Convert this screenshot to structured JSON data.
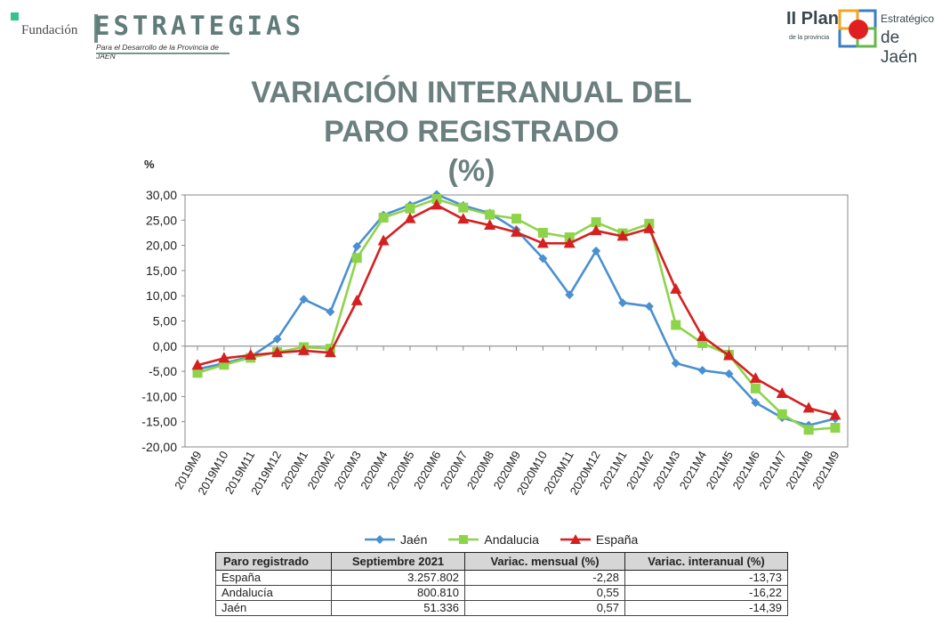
{
  "header": {
    "left_logo": {
      "fundacion": "Fundación",
      "estrategias": "ESTRATEGIAS",
      "subtitle": "Para el Desarrollo de la Provincia de JAÉN"
    },
    "right_logo": {
      "plan": "II Plan",
      "provincia": "de la provincia",
      "estrategico": "Estratégico",
      "jaen": "de Jaén"
    }
  },
  "chart_data": {
    "type": "line",
    "title_lines": [
      "VARIACIÓN INTERANUAL DEL",
      "PARO REGISTRADO",
      "(%)"
    ],
    "ylabel": "%",
    "ylim": [
      -20,
      30
    ],
    "yticks": [
      "30,00",
      "25,00",
      "20,00",
      "15,00",
      "10,00",
      "5,00",
      "0,00",
      "-5,00",
      "-10,00",
      "-15,00",
      "-20,00"
    ],
    "ytick_values": [
      30,
      25,
      20,
      15,
      10,
      5,
      0,
      -5,
      -10,
      -15,
      -20
    ],
    "x": [
      "2019M9",
      "2019M10",
      "2019M11",
      "2019M12",
      "2020M1",
      "2020M2",
      "2020M3",
      "2020M4",
      "2020M5",
      "2020M6",
      "2020M7",
      "2020M8",
      "2020M9",
      "2020M10",
      "2020M11",
      "2020M12",
      "2021M1",
      "2021M2",
      "2021M3",
      "2021M4",
      "2021M5",
      "2021M6",
      "2021M7",
      "2021M8",
      "2021M9"
    ],
    "series": [
      {
        "name": "Jaén",
        "color": "#4a90d0",
        "marker": "diamond",
        "values": [
          -4.6,
          -3.4,
          -2.1,
          1.4,
          9.3,
          6.8,
          19.8,
          26.0,
          28.0,
          30.1,
          27.9,
          26.4,
          23.1,
          17.4,
          10.2,
          18.9,
          8.6,
          7.9,
          -3.4,
          -4.8,
          -5.5,
          -11.2,
          -14.2,
          -15.7,
          -14.4
        ]
      },
      {
        "name": "Andalucia",
        "color": "#8ed44a",
        "marker": "square",
        "values": [
          -5.3,
          -3.7,
          -2.3,
          -1.2,
          -0.2,
          -0.5,
          17.5,
          25.5,
          27.3,
          29.2,
          27.5,
          26.1,
          25.3,
          22.5,
          21.6,
          24.6,
          22.4,
          24.3,
          4.2,
          0.6,
          -1.7,
          -8.4,
          -13.5,
          -16.6,
          -16.2
        ]
      },
      {
        "name": "España",
        "color": "#d42020",
        "marker": "triangle",
        "values": [
          -3.8,
          -2.4,
          -1.8,
          -1.3,
          -0.9,
          -1.3,
          9.0,
          20.9,
          25.3,
          28.0,
          25.2,
          24.0,
          22.6,
          20.4,
          20.4,
          22.9,
          21.8,
          23.3,
          11.3,
          1.9,
          -1.9,
          -6.4,
          -9.4,
          -12.3,
          -13.7
        ]
      }
    ],
    "legend_position": "bottom",
    "grid": false
  },
  "table": {
    "headers": [
      "Paro registrado",
      "Septiembre 2021",
      "Variac. mensual (%)",
      "Variac. interanual (%)"
    ],
    "rows": [
      [
        "España",
        "3.257.802",
        "-2,28",
        "-13,73"
      ],
      [
        "Andalucía",
        "800.810",
        "0,55",
        "-16,22"
      ],
      [
        "Jaén",
        "51.336",
        "0,57",
        "-14,39"
      ]
    ]
  }
}
